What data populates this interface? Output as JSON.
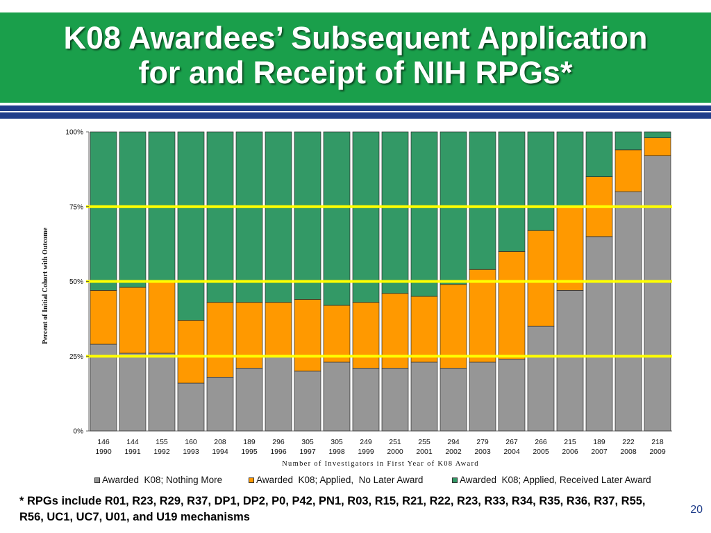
{
  "slide": {
    "title_line1": "K08 Awardees’ Subsequent Application",
    "title_line2": "for and Receipt of NIH RPGs*",
    "footnote_line1": "* RPGs include R01, R23, R29, R37, DP1, DP2, P0, P42, PN1, R03, R15, R21, R22, R23, R33, R34, R35, R36, R37, R55,",
    "footnote_line2": "R56, UC1, UC7, U01, and U19 mechanisms",
    "page_number": "20",
    "colors": {
      "header_green": "#1a9f4b",
      "stripe_navy": "#1f3d8a",
      "title_text": "#ffffff",
      "page_number": "#1f3d8a"
    }
  },
  "chart_data": {
    "type": "bar",
    "stacked": true,
    "categories": [
      "1990",
      "1991",
      "1992",
      "1993",
      "1994",
      "1995",
      "1996",
      "1997",
      "1998",
      "1999",
      "2000",
      "2001",
      "2002",
      "2003",
      "2004",
      "2005",
      "2006",
      "2007",
      "2008",
      "2009"
    ],
    "counts": [
      146,
      144,
      155,
      160,
      208,
      189,
      296,
      305,
      305,
      249,
      251,
      255,
      294,
      279,
      267,
      266,
      215,
      189,
      222,
      218
    ],
    "series": [
      {
        "name": "Awarded  K08; Nothing More",
        "color": "#969696",
        "values": [
          29,
          26,
          26,
          16,
          18,
          21,
          25,
          20,
          23,
          21,
          21,
          23,
          21,
          23,
          24,
          35,
          47,
          65,
          80,
          92
        ]
      },
      {
        "name": "Awarded  K08; Applied,  No Later Award",
        "color": "#ff9900",
        "values": [
          18,
          22,
          24,
          21,
          25,
          22,
          18,
          24,
          19,
          22,
          25,
          22,
          28,
          31,
          36,
          32,
          28,
          20,
          14,
          6
        ]
      },
      {
        "name": "Awarded  K08; Applied, Received Later Award",
        "color": "#339966",
        "values": [
          53,
          52,
          50,
          63,
          57,
          57,
          57,
          56,
          58,
          57,
          54,
          55,
          51,
          46,
          40,
          33,
          25,
          15,
          6,
          2
        ]
      }
    ],
    "xlabel": "Number of Investigators in First Year of K08 Award",
    "ylabel": "Percent of Initial Cohort with Outcome",
    "ylim": [
      0,
      100
    ],
    "yticks": [
      0,
      25,
      50,
      75,
      100
    ],
    "ytick_labels": [
      "0%",
      "25%",
      "50%",
      "75%",
      "100%"
    ],
    "reference_lines": {
      "values": [
        25,
        50,
        75
      ],
      "color": "#ffff00"
    },
    "grid": false,
    "legend_position": "bottom"
  }
}
